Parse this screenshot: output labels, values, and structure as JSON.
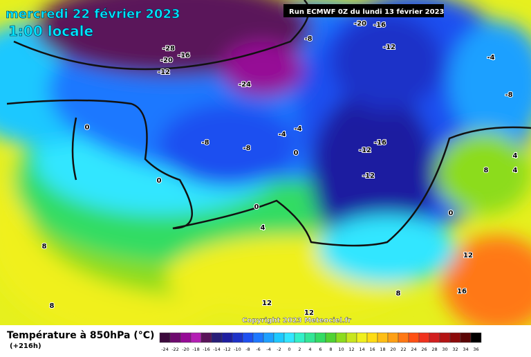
{
  "header": {
    "date": "mercredi 22 février 2023",
    "time": "1:00 locale",
    "run": "Run ECMWF 0Z du lundi 13 février 2023"
  },
  "footer": {
    "title": "Température à 850hPa (°C)",
    "lead": "(+216h)",
    "copyright": "Copyright 2023 Meteociel.fr"
  },
  "isotherm_labels": [
    -28,
    -20,
    -16,
    -12,
    -24,
    -8,
    -20,
    -16,
    -12,
    -4,
    -8,
    0,
    -4,
    -4,
    -8,
    -8,
    0,
    -12,
    -16,
    -12,
    0,
    0,
    4,
    0,
    8,
    4,
    4,
    8,
    8,
    12,
    12,
    8,
    12,
    16
  ],
  "scale": {
    "ticks": [
      -24,
      -22,
      -20,
      -18,
      -16,
      -14,
      -12,
      -10,
      -8,
      -6,
      -4,
      -2,
      0,
      2,
      4,
      6,
      8,
      10,
      12,
      14,
      16,
      18,
      20,
      22,
      24,
      26,
      28,
      30,
      32,
      34,
      36
    ],
    "colors": [
      "#3c0a3c",
      "#6e0a6e",
      "#960a96",
      "#b41eb4",
      "#5a145a",
      "#281e78",
      "#1e1ea0",
      "#1e32c8",
      "#1e50f0",
      "#1e78ff",
      "#1ea0ff",
      "#1ec8ff",
      "#32e6ff",
      "#32f0c8",
      "#32e696",
      "#32dc64",
      "#50d232",
      "#8cdc1e",
      "#c8e61e",
      "#f0f01e",
      "#ffdc14",
      "#ffbe14",
      "#ffa014",
      "#ff7814",
      "#ff5014",
      "#f0321e",
      "#d21e1e",
      "#b41414",
      "#8c0a0a",
      "#5a0505",
      "#000000"
    ]
  }
}
